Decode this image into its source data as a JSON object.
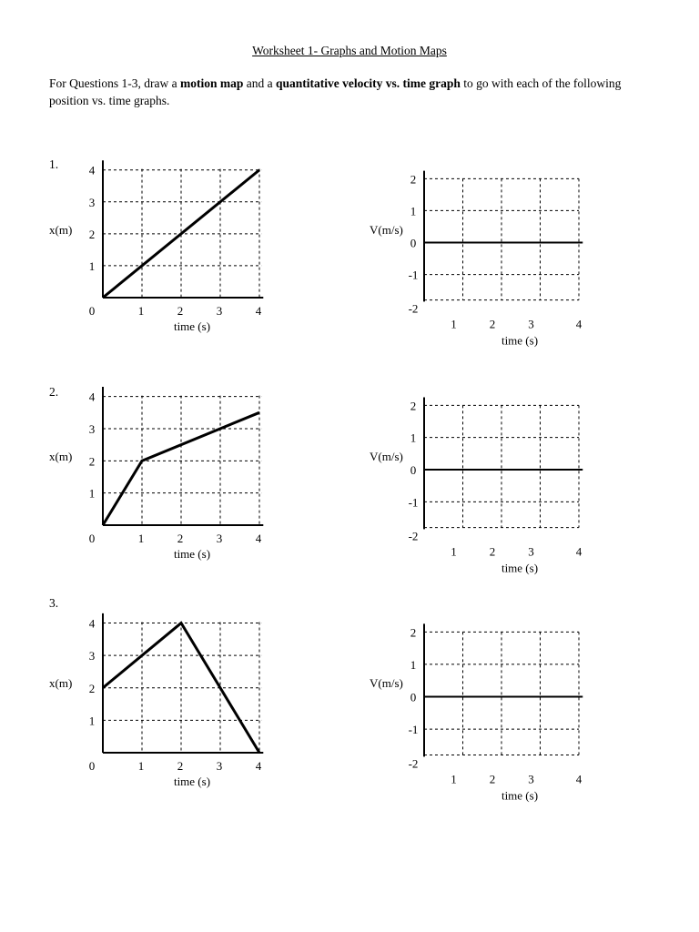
{
  "title": "Worksheet 1- Graphs and Motion Maps",
  "instructions": {
    "part1": "For Questions 1-3, draw a ",
    "bold1": "motion map",
    "part2": " and a ",
    "bold2": "quantitative velocity vs. time graph",
    "part3": " to go with each of the following position vs. time graphs."
  },
  "axis_labels": {
    "position_y": "x(m)",
    "velocity_y": "V(m/s)",
    "time_x": "time (s)"
  },
  "questions": [
    {
      "number": "1.",
      "position_points": [
        [
          0,
          0
        ],
        [
          4,
          4
        ]
      ]
    },
    {
      "number": "2.",
      "position_points": [
        [
          0,
          0
        ],
        [
          1,
          2
        ],
        [
          4,
          3.5
        ]
      ]
    },
    {
      "number": "3.",
      "position_points": [
        [
          0,
          2
        ],
        [
          2,
          4
        ],
        [
          4,
          0
        ]
      ]
    }
  ],
  "chart_data": [
    {
      "type": "line",
      "title": "",
      "xlabel": "time (s)",
      "ylabel": "x(m)",
      "x": [
        0,
        4
      ],
      "y": [
        0,
        4
      ],
      "xlim": [
        0,
        4
      ],
      "ylim": [
        0,
        4
      ],
      "grid": true
    },
    {
      "type": "line",
      "title": "",
      "xlabel": "time (s)",
      "ylabel": "V(m/s)",
      "xlim": [
        0,
        4
      ],
      "ylim": [
        -2,
        2
      ],
      "grid": true,
      "values": []
    },
    {
      "type": "line",
      "title": "",
      "xlabel": "time (s)",
      "ylabel": "x(m)",
      "x": [
        0,
        1,
        4
      ],
      "y": [
        0,
        2,
        3.5
      ],
      "xlim": [
        0,
        4
      ],
      "ylim": [
        0,
        4
      ],
      "grid": true
    },
    {
      "type": "line",
      "title": "",
      "xlabel": "time (s)",
      "ylabel": "V(m/s)",
      "xlim": [
        0,
        4
      ],
      "ylim": [
        -2,
        2
      ],
      "grid": true,
      "values": []
    },
    {
      "type": "line",
      "title": "",
      "xlabel": "time (s)",
      "ylabel": "x(m)",
      "x": [
        0,
        2,
        4
      ],
      "y": [
        2,
        4,
        0
      ],
      "xlim": [
        0,
        4
      ],
      "ylim": [
        0,
        4
      ],
      "grid": true
    },
    {
      "type": "line",
      "title": "",
      "xlabel": "time (s)",
      "ylabel": "V(m/s)",
      "xlim": [
        0,
        4
      ],
      "ylim": [
        -2,
        2
      ],
      "grid": true,
      "values": []
    }
  ]
}
